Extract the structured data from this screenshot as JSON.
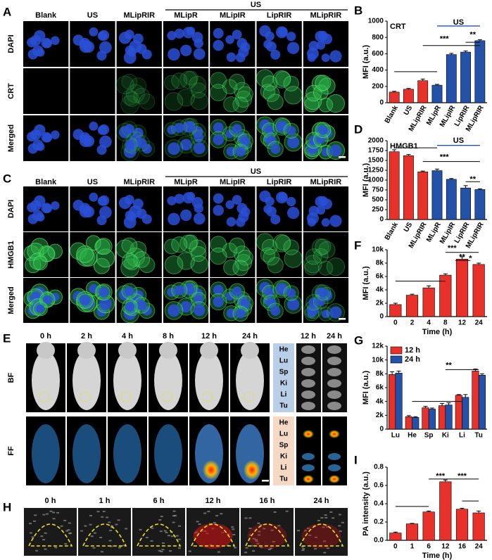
{
  "panel_labels": [
    "A",
    "B",
    "C",
    "D",
    "E",
    "F",
    "G",
    "H",
    "I"
  ],
  "panel_a": {
    "group_label": "US",
    "columns": [
      "Blank",
      "US",
      "MLipRIR",
      "MLipR",
      "MLipIR",
      "LipRIR",
      "MLipRIR"
    ],
    "rows": [
      "DAPI",
      "CRT",
      "Merged"
    ]
  },
  "panel_c": {
    "group_label": "US",
    "columns": [
      "Blank",
      "US",
      "MLipRIR",
      "MLipR",
      "MLipIR",
      "LipRIR",
      "MLipRIR"
    ],
    "rows": [
      "DAPI",
      "HMGB1",
      "Merged"
    ]
  },
  "panel_e": {
    "times": [
      "0 h",
      "2 h",
      "4 h",
      "8 h",
      "12 h",
      "24 h"
    ],
    "rows": [
      "BF",
      "FF"
    ],
    "organs": [
      "He",
      "Lu",
      "Sp",
      "Ki",
      "Li",
      "Tu"
    ],
    "organ_times": [
      "12 h",
      "24 h"
    ]
  },
  "panel_h": {
    "times": [
      "0 h",
      "1 h",
      "6 h",
      "12 h",
      "16 h",
      "24 h"
    ]
  },
  "chart_data": [
    {
      "type": "bar",
      "title": "CRT",
      "ylabel": "MFI (a.u.)",
      "categories": [
        "Blank",
        "US",
        "MLipRIR",
        "MLipR",
        "MLipIR",
        "LipRIR",
        "MLipRIR"
      ],
      "values": [
        130,
        165,
        270,
        215,
        590,
        620,
        760
      ],
      "errors": [
        10,
        10,
        20,
        10,
        15,
        15,
        12
      ],
      "colors": [
        "#e8312a",
        "#e8312a",
        "#e8312a",
        "#2452a8",
        "#2452a8",
        "#2452a8",
        "#2452a8"
      ],
      "ylim": [
        0,
        1000
      ],
      "yticks": [
        0,
        200,
        400,
        600,
        800,
        1000
      ],
      "annotations": [
        {
          "text": "US",
          "color": "#2452a8"
        },
        {
          "text": "***",
          "color": "#000000"
        },
        {
          "text": "**",
          "color": "#000000"
        }
      ]
    },
    {
      "type": "bar",
      "title": "HMGB1",
      "ylabel": "MFI (a.u.)",
      "categories": [
        "Blank",
        "US",
        "MLipRIR",
        "MLipR",
        "MLipIR",
        "LipRIR",
        "MLipRIR"
      ],
      "values": [
        1720,
        1620,
        1210,
        1240,
        1020,
        800,
        760
      ],
      "errors": [
        50,
        30,
        20,
        40,
        20,
        60,
        20
      ],
      "colors": [
        "#e8312a",
        "#e8312a",
        "#e8312a",
        "#2452a8",
        "#2452a8",
        "#2452a8",
        "#2452a8"
      ],
      "ylim": [
        0,
        2000
      ],
      "yticks": [
        0,
        250,
        500,
        750,
        1000,
        1250,
        1500,
        1750,
        2000
      ],
      "annotations": [
        {
          "text": "US",
          "color": "#2452a8"
        },
        {
          "text": "***",
          "color": "#000000"
        },
        {
          "text": "**",
          "color": "#000000"
        }
      ]
    },
    {
      "type": "bar",
      "ylabel": "MFI (a.u.)",
      "xlabel": "Time (h)",
      "categories": [
        "0",
        "2",
        "4",
        "8",
        "12",
        "24"
      ],
      "values": [
        1800,
        3200,
        4300,
        6200,
        8600,
        7800
      ],
      "errors": [
        200,
        150,
        300,
        200,
        350,
        200
      ],
      "colors": [
        "#e8312a",
        "#e8312a",
        "#e8312a",
        "#e8312a",
        "#e8312a",
        "#e8312a"
      ],
      "ylim": [
        0,
        10000
      ],
      "yticks": [
        0,
        {
          "value": 2000,
          "label": "2k"
        },
        {
          "value": 4000,
          "label": "4k"
        },
        {
          "value": 6000,
          "label": "6k"
        },
        {
          "value": 8000,
          "label": "8k"
        },
        {
          "value": 10000,
          "label": "10k"
        }
      ],
      "annotations": [
        {
          "text": "***",
          "color": "#000000"
        },
        {
          "text": "**",
          "color": "#000000"
        },
        {
          "text": "*",
          "color": "#000000"
        }
      ]
    },
    {
      "type": "grouped_bar",
      "ylabel": "MFI (a.u.)",
      "legend": "upper left",
      "categories": [
        "Lu",
        "He",
        "Sp",
        "Ki",
        "Li",
        "Tu"
      ],
      "series": [
        {
          "name": "12 h",
          "color": "#e8312a",
          "values": [
            7900,
            1800,
            3100,
            3400,
            4900,
            8400
          ],
          "errors": [
            400,
            150,
            200,
            300,
            100,
            300
          ]
        },
        {
          "name": "24 h",
          "color": "#2452a8",
          "values": [
            8100,
            1700,
            2900,
            3500,
            4600,
            7800
          ],
          "errors": [
            300,
            100,
            150,
            300,
            400,
            200
          ]
        }
      ],
      "ylim": [
        0,
        12000
      ],
      "yticks": [
        0,
        {
          "value": 2000,
          "label": "2k"
        },
        {
          "value": 4000,
          "label": "4k"
        },
        {
          "value": 6000,
          "label": "6k"
        },
        {
          "value": 8000,
          "label": "8k"
        },
        {
          "value": 10000,
          "label": "10k"
        },
        {
          "value": 12000,
          "label": "12k"
        }
      ],
      "annotations": [
        {
          "text": "**",
          "color": "#000000"
        }
      ]
    },
    {
      "type": "bar",
      "ylabel": "PA intensity (a.u.)",
      "xlabel": "Time (h)",
      "categories": [
        "0",
        "1",
        "6",
        "12",
        "16",
        "24"
      ],
      "values": [
        0.08,
        0.18,
        0.31,
        0.64,
        0.34,
        0.3
      ],
      "errors": [
        0.01,
        0.005,
        0.01,
        0.02,
        0.01,
        0.02
      ],
      "colors": [
        "#e8312a",
        "#e8312a",
        "#e8312a",
        "#e8312a",
        "#e8312a",
        "#e8312a"
      ],
      "ylim": [
        0,
        0.8
      ],
      "yticks": [
        {
          "value": 0,
          "label": "0.0"
        },
        0.2,
        0.4,
        0.6,
        0.8
      ],
      "annotations": [
        {
          "text": "***",
          "color": "#000000"
        },
        {
          "text": "***",
          "color": "#000000"
        }
      ]
    }
  ]
}
